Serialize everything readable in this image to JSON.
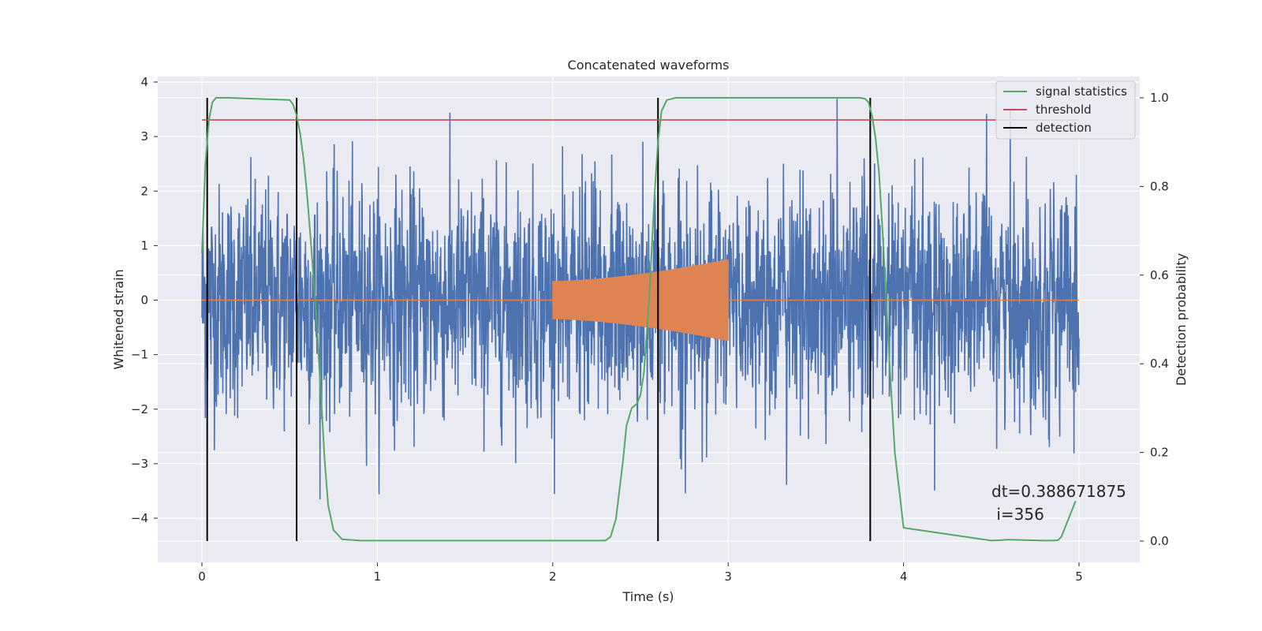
{
  "chart_data": {
    "type": "line",
    "title": "Concatenated waveforms",
    "xlabel": "Time (s)",
    "ylabel": "Whitened strain",
    "y2label": "Detection probability",
    "xlim": [
      -0.25,
      5.35
    ],
    "ylim": [
      -4.8,
      4.1
    ],
    "y2lim": [
      -0.045,
      1.035
    ],
    "xticks": [
      0,
      1,
      2,
      3,
      4,
      5
    ],
    "xtick_labels": [
      "0",
      "1",
      "2",
      "3",
      "4",
      "5"
    ],
    "yticks": [
      4,
      3,
      2,
      1,
      0,
      -1,
      -2,
      -3,
      -4
    ],
    "ytick_labels": [
      "4",
      "3",
      "2",
      "1",
      "0",
      "−1",
      "−2",
      "−3",
      "−4"
    ],
    "y2ticks": [
      1.0,
      0.8,
      0.6,
      0.4,
      0.2,
      0.0
    ],
    "y2tick_labels": [
      "1.0",
      "0.8",
      "0.6",
      "0.4",
      "0.2",
      "0.0"
    ],
    "grid": true,
    "legend": {
      "placement": "top-right",
      "entries": [
        {
          "label": "signal statistics",
          "color": "#55a868"
        },
        {
          "label": "threshold",
          "color": "#c44e52"
        },
        {
          "label": "detection",
          "color": "#000000"
        }
      ]
    },
    "series": [
      {
        "color": "#4c72b0",
        "x_range": [
          0,
          5
        ],
        "kind": "noise",
        "typical_abs": 1.2,
        "peak_abs": 3.9
      },
      {
        "color": "#dd8452",
        "x_range": [
          0,
          5
        ],
        "kind": "chirp",
        "active_range": [
          2,
          3
        ],
        "amplitude": [
          0.35,
          0.75
        ]
      },
      {
        "name": "signal statistics",
        "color": "#55a868",
        "axis": "right",
        "x": [
          0.0,
          0.02,
          0.04,
          0.06,
          0.08,
          0.1,
          0.15,
          0.5,
          0.52,
          0.54,
          0.56,
          0.58,
          0.6,
          0.62,
          0.65,
          0.68,
          0.7,
          0.72,
          0.75,
          0.8,
          0.9,
          1.5,
          2.3,
          2.33,
          2.36,
          2.4,
          2.42,
          2.45,
          2.48,
          2.5,
          2.52,
          2.55,
          2.58,
          2.6,
          2.62,
          2.65,
          2.7,
          3.75,
          3.78,
          3.8,
          3.82,
          3.84,
          3.86,
          3.88,
          3.9,
          3.92,
          3.95,
          4.0,
          4.5,
          4.6,
          4.8,
          4.85,
          4.88,
          4.9,
          4.92,
          4.95,
          4.98
        ],
        "y": [
          0.65,
          0.85,
          0.95,
          0.99,
          1.0,
          1.0,
          1.0,
          0.995,
          0.985,
          0.96,
          0.92,
          0.86,
          0.78,
          0.68,
          0.52,
          0.32,
          0.18,
          0.08,
          0.025,
          0.004,
          0.001,
          0.001,
          0.001,
          0.01,
          0.05,
          0.18,
          0.26,
          0.3,
          0.31,
          0.33,
          0.38,
          0.55,
          0.78,
          0.9,
          0.97,
          0.995,
          1.0,
          1.0,
          0.998,
          0.99,
          0.96,
          0.91,
          0.83,
          0.7,
          0.55,
          0.4,
          0.2,
          0.03,
          0.001,
          0.003,
          0.001,
          0.001,
          0.002,
          0.01,
          0.03,
          0.06,
          0.09
        ]
      },
      {
        "name": "threshold",
        "color": "#c44e52",
        "axis": "right",
        "x": [
          0,
          5
        ],
        "y": [
          0.95,
          0.95
        ]
      },
      {
        "name": "detection",
        "color": "#000000",
        "axis": "right",
        "x": [
          0.03,
          0.54,
          2.6,
          3.81
        ],
        "y_range": [
          0.0,
          1.0
        ]
      }
    ],
    "annotation": {
      "line1": "dt=0.388671875",
      "line2": " i=356"
    }
  }
}
